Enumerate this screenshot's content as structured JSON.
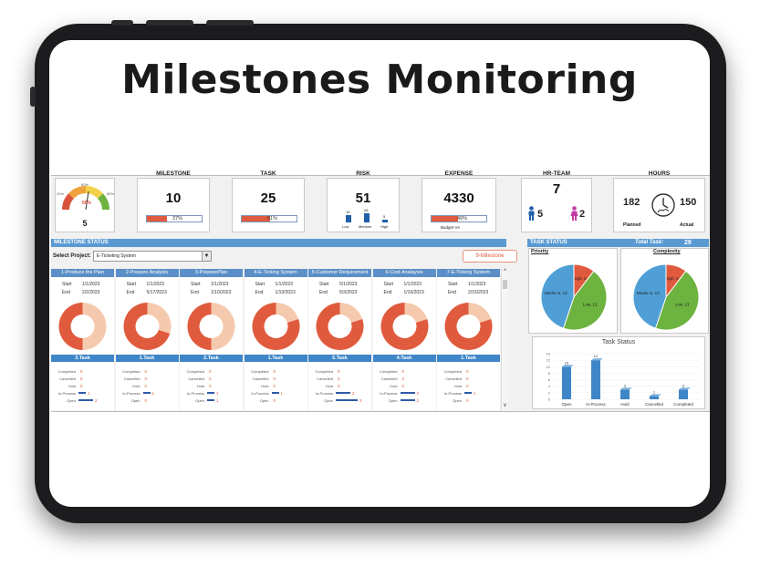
{
  "title": "Milestones Monitoring",
  "gauge": {
    "pct": "56%",
    "value": "5",
    "ticks": [
      "0%",
      "20%",
      "40%",
      "60%",
      "80%",
      "100%"
    ]
  },
  "kpis": {
    "milestone": {
      "label": "MILESTONE",
      "value": "10",
      "pct_label": "37%",
      "pct": 0.37
    },
    "task": {
      "label": "TASK",
      "value": "25",
      "pct_label": "51%",
      "pct": 0.51
    },
    "risk": {
      "label": "RISK",
      "value": "51",
      "bars": [
        {
          "label": "Low",
          "value": "18"
        },
        {
          "label": "Medium",
          "value": "28"
        },
        {
          "label": "High",
          "value": "5"
        }
      ]
    },
    "expense": {
      "label": "EXPENSE",
      "value": "4330",
      "pct_label": "49%",
      "pct": 0.49,
      "caption": "Budget Vs"
    },
    "hr": {
      "label": "HR-TEAM",
      "value": "7",
      "male": "5",
      "female": "2"
    },
    "hours": {
      "label": "HOURS",
      "planned": "182",
      "actual": "150",
      "planned_label": "Planned",
      "actual_label": "Actual"
    }
  },
  "milestone_status": {
    "header": "MILESTONE STATUS",
    "select_label": "Select Project:",
    "select_value": "E-Ticketing System",
    "count_button": "9-Milestone",
    "start_label": "Start",
    "end_label": "End",
    "status_labels": [
      "Completed",
      "Cancelled",
      "Hold",
      "In-Process",
      "Open"
    ],
    "columns": [
      {
        "name": "1-Produce the Plan",
        "start": "1/1/2023",
        "end": "2/2/2023",
        "task": "3.Task",
        "done": 0.5,
        "stats": [
          "0",
          "0",
          "0",
          "1",
          "2"
        ]
      },
      {
        "name": "2-Prepare Analysis",
        "start": "1/1/2023",
        "end": "5/17/2023",
        "task": "1.Task",
        "done": 0.3,
        "stats": [
          "0",
          "0",
          "0",
          "1",
          "0"
        ]
      },
      {
        "name": "3-PreparePlan",
        "start": "1/1/2023",
        "end": "1/10/2023",
        "task": "2.Task",
        "done": 0.5,
        "stats": [
          "0",
          "0",
          "0",
          "1",
          "1"
        ]
      },
      {
        "name": "4-E-Ticking System",
        "start": "1/1/2023",
        "end": "1/10/2023",
        "task": "1.Task",
        "done": 0.2,
        "stats": [
          "0",
          "0",
          "0",
          "1",
          "0"
        ]
      },
      {
        "name": "5-Customer Requirement",
        "start": "5/1/2023",
        "end": "5/3/2023",
        "task": "5.Task",
        "done": 0.2,
        "stats": [
          "0",
          "0",
          "0",
          "2",
          "3"
        ]
      },
      {
        "name": "6-Cost Analaysis",
        "start": "1/1/2023",
        "end": "1/10/2023",
        "task": "4.Task",
        "done": 0.2,
        "stats": [
          "0",
          "0",
          "0",
          "2",
          "2"
        ]
      },
      {
        "name": "7-E-Ticking System",
        "start": "1/1/2023",
        "end": "2/15/2023",
        "task": "1.Task",
        "done": 0.2,
        "stats": [
          "0",
          "0",
          "0",
          "1",
          "0"
        ]
      }
    ]
  },
  "task_status": {
    "header": "TASK STATUS",
    "total_label": "Total Task:",
    "total": "29",
    "priority_title": "Priority",
    "complexity_title": "Complexity",
    "priority_slices": [
      {
        "label": "High, 3",
        "value": 3,
        "color": "#e05a3d"
      },
      {
        "label": "Low, 13",
        "value": 13,
        "color": "#6db33f"
      },
      {
        "label": "Mediu m, 13",
        "value": 13,
        "color": "#4f9fd6"
      }
    ],
    "complexity_slices": [
      {
        "label": "High, 3",
        "value": 3,
        "color": "#e05a3d"
      },
      {
        "label": "Low, 13",
        "value": 13,
        "color": "#6db33f"
      },
      {
        "label": "Mediu m, 13",
        "value": 13,
        "color": "#4f9fd6"
      }
    ],
    "bar_title": "Task Status",
    "bars": [
      {
        "label": "Open",
        "value": 10
      },
      {
        "label": "In-Process",
        "value": 12
      },
      {
        "label": "Hold",
        "value": 3
      },
      {
        "label": "Cancelled",
        "value": 1
      },
      {
        "label": "Completed",
        "value": 3
      }
    ],
    "y_ticks": [
      "0",
      "2",
      "4",
      "6",
      "8",
      "10",
      "12",
      "14"
    ]
  },
  "colors": {
    "accent": "#e05a3d",
    "light": "#f5c9ad",
    "header": "#5a9ad2",
    "bar": "#3f86c8"
  }
}
